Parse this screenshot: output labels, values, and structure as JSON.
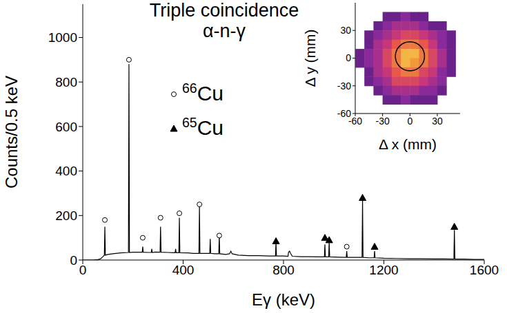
{
  "chart_data": [
    {
      "type": "line",
      "title": "Triple coincidence",
      "subtitle": "α-n-γ",
      "xlabel": "Eγ (keV)",
      "ylabel": "Counts/0.5 keV",
      "xlim": [
        0,
        1600
      ],
      "xticks": [
        0,
        400,
        800,
        1200,
        1600
      ],
      "ylim": [
        0,
        1150
      ],
      "yticks": [
        0,
        200,
        400,
        600,
        800,
        1000
      ],
      "grid": false,
      "legend": "upper left",
      "series": [
        {
          "type": "line",
          "color": "#000000",
          "x": [
            0,
            20,
            40,
            60,
            70,
            80,
            86,
            88,
            90,
            100,
            120,
            150,
            182,
            184,
            186,
            200,
            237,
            239,
            241,
            260,
            273,
            275,
            277,
            290,
            308,
            310,
            312,
            340,
            360,
            368,
            370,
            372,
            383,
            385,
            387,
            420,
            440,
            463,
            465,
            467,
            490,
            506,
            508,
            510,
            525,
            542,
            544,
            546,
            570,
            585,
            590,
            595,
            620,
            660,
            700,
            740,
            768,
            770,
            772,
            800,
            818,
            820,
            824,
            828,
            835,
            870,
            900,
            940,
            963,
            965,
            967,
            980,
            982,
            984,
            1020,
            1050,
            1052,
            1054,
            1080,
            1113,
            1115,
            1117,
            1140,
            1161,
            1163,
            1165,
            1200,
            1250,
            1300,
            1350,
            1400,
            1440,
            1479,
            1481,
            1483,
            1520,
            1560,
            1600
          ],
          "values": [
            0,
            0,
            0,
            2,
            5,
            15,
            22,
            150,
            22,
            25,
            28,
            32,
            34,
            880,
            34,
            35,
            35,
            60,
            35,
            34,
            34,
            50,
            34,
            36,
            35,
            150,
            35,
            34,
            33,
            33,
            50,
            33,
            33,
            190,
            33,
            32,
            30,
            30,
            240,
            30,
            30,
            30,
            95,
            30,
            28,
            28,
            110,
            28,
            25,
            28,
            40,
            28,
            22,
            20,
            20,
            18,
            18,
            80,
            18,
            18,
            17,
            35,
            40,
            30,
            17,
            15,
            15,
            14,
            14,
            70,
            14,
            14,
            80,
            14,
            13,
            12,
            40,
            12,
            12,
            12,
            270,
            12,
            10,
            10,
            40,
            10,
            8,
            7,
            6,
            6,
            5,
            5,
            4,
            135,
            4,
            4,
            3,
            3
          ]
        },
        {
          "name": "66Cu",
          "type": "scatter",
          "marker": "circle_open",
          "color": "#000000",
          "x": [
            88,
            184,
            239,
            310,
            385,
            465,
            544,
            1052
          ],
          "values": [
            180,
            900,
            100,
            190,
            210,
            250,
            110,
            60
          ]
        },
        {
          "name": "65Cu",
          "type": "scatter",
          "marker": "triangle",
          "color": "#000000",
          "x": [
            770,
            965,
            982,
            1115,
            1163,
            1481
          ],
          "values": [
            85,
            100,
            90,
            280,
            60,
            150
          ]
        }
      ]
    },
    {
      "type": "heatmap",
      "xlabel": "Δ x (mm)",
      "ylabel": "Δ y (mm)",
      "xlim": [
        -60,
        55
      ],
      "xticks": [
        -60,
        -30,
        0,
        30
      ],
      "ylim": [
        -60,
        60
      ],
      "yticks": [
        -60,
        -30,
        0,
        30
      ],
      "cell_size": 10,
      "cell_x": [
        -55,
        -45,
        -35,
        -25,
        -15,
        -5,
        5,
        15,
        25,
        35,
        45
      ],
      "cell_y": [
        55,
        45,
        35,
        25,
        15,
        5,
        -5,
        -15,
        -25,
        -35,
        -45,
        -55
      ],
      "cells": [
        [
          0,
          0,
          0,
          0,
          0,
          0,
          0,
          0,
          0,
          0,
          0
        ],
        [
          0,
          0,
          0,
          1,
          1,
          2,
          1,
          1,
          0,
          0,
          0
        ],
        [
          0,
          0,
          1,
          2,
          3,
          3,
          3,
          2,
          1,
          1,
          0
        ],
        [
          0,
          1,
          2,
          3,
          4,
          5,
          5,
          4,
          3,
          2,
          1
        ],
        [
          0,
          1,
          3,
          4,
          6,
          7,
          7,
          6,
          4,
          2,
          1
        ],
        [
          1,
          2,
          3,
          5,
          7,
          9,
          9,
          7,
          5,
          3,
          1
        ],
        [
          1,
          2,
          3,
          5,
          7,
          9,
          8,
          7,
          5,
          3,
          1
        ],
        [
          0,
          1,
          3,
          4,
          6,
          7,
          7,
          5,
          4,
          2,
          1
        ],
        [
          0,
          1,
          2,
          3,
          5,
          5,
          5,
          4,
          3,
          2,
          0
        ],
        [
          0,
          0,
          1,
          2,
          3,
          3,
          3,
          2,
          2,
          1,
          0
        ],
        [
          0,
          0,
          0,
          1,
          1,
          2,
          1,
          1,
          1,
          0,
          0
        ],
        [
          0,
          0,
          0,
          0,
          0,
          0,
          0,
          0,
          0,
          0,
          0
        ]
      ],
      "zlim": [
        0,
        10
      ],
      "colors": [
        "#4a1a7a",
        "#8a2a9a",
        "#c8367a",
        "#e8584a",
        "#f29a3a",
        "#f8d050"
      ],
      "circle": {
        "center": [
          0,
          2
        ],
        "radius": 16,
        "color": "#000000"
      }
    }
  ]
}
